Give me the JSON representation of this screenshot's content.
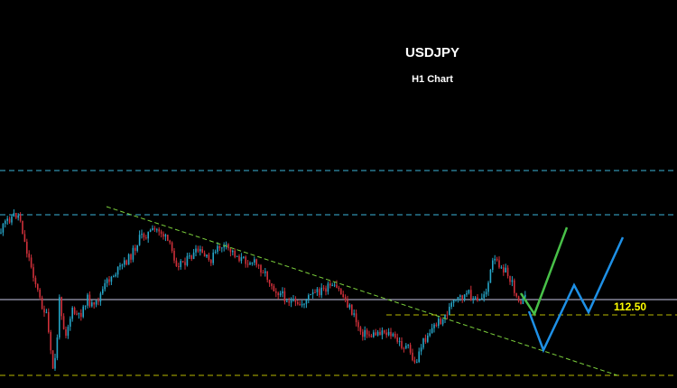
{
  "chart_data": {
    "type": "candlestick",
    "title": "USDJPY",
    "subtitle": "H1 Chart",
    "colors": {
      "background": "#000000",
      "bull": "#26a6c9",
      "bear": "#d0303a",
      "resistance": "#3cb4d8",
      "support": "#b8b800",
      "trendline": "#7cd03c",
      "current_price": "#c8c8e6",
      "bull_projection": "#48c048",
      "bear_projection": "#1e90e6",
      "level_text": "#ffff00"
    },
    "annotations": {
      "level_label": "112.50"
    },
    "grid": false
  }
}
